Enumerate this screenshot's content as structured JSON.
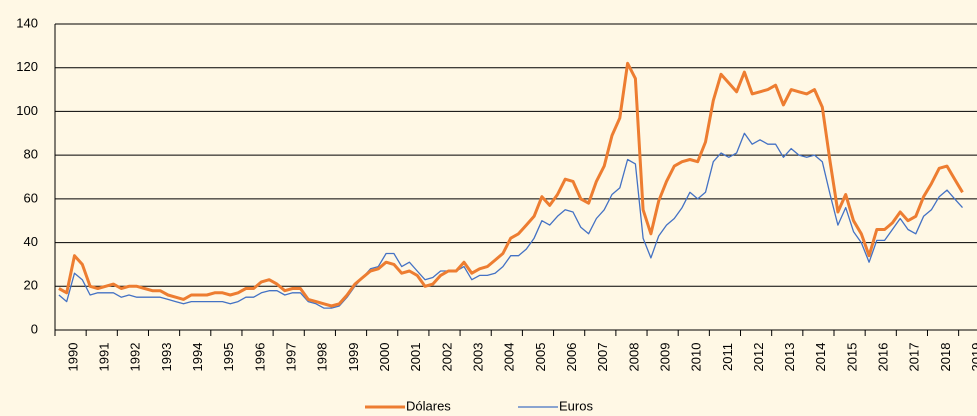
{
  "chart_data": {
    "type": "line",
    "categories": [
      "1990",
      null,
      null,
      null,
      "1991",
      null,
      null,
      null,
      "1992",
      null,
      null,
      null,
      "1993",
      null,
      null,
      null,
      "1994",
      null,
      null,
      null,
      "1995",
      null,
      null,
      null,
      "1996",
      null,
      null,
      null,
      "1997",
      null,
      null,
      null,
      "1998",
      null,
      null,
      null,
      "1999",
      null,
      null,
      null,
      "2000",
      null,
      null,
      null,
      "2001",
      null,
      null,
      null,
      "2002",
      null,
      null,
      null,
      "2003",
      null,
      null,
      null,
      "2004",
      null,
      null,
      null,
      "2005",
      null,
      null,
      null,
      "2006",
      null,
      null,
      null,
      "2007",
      null,
      null,
      null,
      "2008",
      null,
      null,
      null,
      "2009",
      null,
      null,
      null,
      "2010",
      null,
      null,
      null,
      "2011",
      null,
      null,
      null,
      "2012",
      null,
      null,
      null,
      "2013",
      null,
      null,
      null,
      "2014",
      null,
      null,
      null,
      "2015",
      null,
      null,
      null,
      "2016",
      null,
      null,
      null,
      "2017",
      null,
      null,
      null,
      "2018",
      null,
      null,
      null,
      "2019"
    ],
    "series": [
      {
        "name": "Dólares",
        "color": "#ed7d31",
        "values": [
          19,
          17,
          34,
          30,
          20,
          19,
          20,
          21,
          19,
          20,
          20,
          19,
          18,
          18,
          16,
          15,
          14,
          16,
          16,
          16,
          17,
          17,
          16,
          17,
          19,
          19,
          22,
          23,
          21,
          18,
          19,
          19,
          14,
          13,
          12,
          11,
          12,
          16,
          21,
          24,
          27,
          28,
          31,
          30,
          26,
          27,
          25,
          20,
          21,
          25,
          27,
          27,
          31,
          26,
          28,
          29,
          32,
          35,
          42,
          44,
          48,
          52,
          61,
          57,
          62,
          69,
          68,
          60,
          58,
          68,
          75,
          89,
          97,
          122,
          115,
          55,
          44,
          59,
          68,
          75,
          77,
          78,
          77,
          86,
          105,
          117,
          113,
          109,
          118,
          108,
          109,
          110,
          112,
          103,
          110,
          109,
          108,
          110,
          102,
          77,
          54,
          62,
          50,
          44,
          34,
          46,
          46,
          49,
          54,
          50,
          52,
          61,
          67,
          74,
          75,
          69,
          63
        ]
      },
      {
        "name": "Euros",
        "color": "#4472c4",
        "values": [
          16,
          13,
          26,
          23,
          16,
          17,
          17,
          17,
          15,
          16,
          15,
          15,
          15,
          15,
          14,
          13,
          12,
          13,
          13,
          13,
          13,
          13,
          12,
          13,
          15,
          15,
          17,
          18,
          18,
          16,
          17,
          17,
          13,
          12,
          10,
          10,
          11,
          15,
          20,
          24,
          28,
          29,
          35,
          35,
          29,
          31,
          27,
          23,
          24,
          27,
          27,
          27,
          29,
          23,
          25,
          25,
          26,
          29,
          34,
          34,
          37,
          42,
          50,
          48,
          52,
          55,
          54,
          47,
          44,
          51,
          55,
          62,
          65,
          78,
          76,
          42,
          33,
          43,
          48,
          51,
          56,
          63,
          60,
          63,
          77,
          81,
          79,
          81,
          90,
          85,
          87,
          85,
          85,
          79,
          83,
          80,
          79,
          80,
          77,
          62,
          48,
          56,
          45,
          40,
          31,
          41,
          41,
          46,
          51,
          46,
          44,
          52,
          55,
          61,
          64,
          60,
          56
        ]
      }
    ],
    "ylim": [
      0,
      140
    ],
    "yticks": [
      0,
      20,
      40,
      60,
      80,
      100,
      120,
      140
    ],
    "grid": true,
    "legend": "bottom"
  }
}
